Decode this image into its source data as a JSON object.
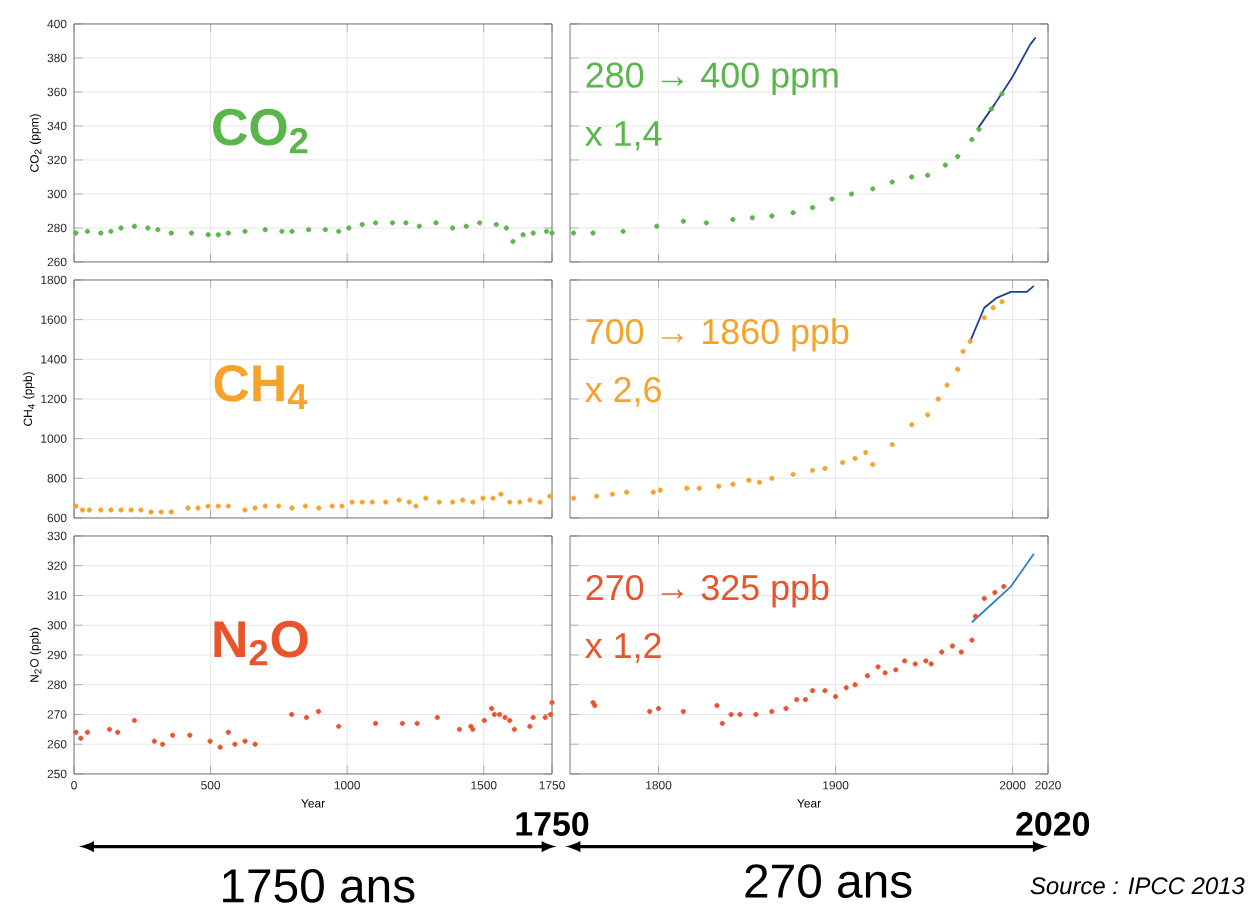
{
  "chart_data": [
    {
      "type": "scatter",
      "ylabel": "CO$_{2}$ (ppm)",
      "xlim": [
        0,
        1750
      ],
      "ylim": [
        260,
        400
      ],
      "xticks": [
        0,
        500,
        1000,
        1500,
        1750
      ],
      "yticks": [
        260,
        280,
        300,
        320,
        340,
        360,
        380,
        400
      ],
      "tick_labels": "y",
      "grid": true,
      "marker": "circle",
      "annotations": [
        "CO$_{2}$"
      ],
      "series": [
        {
          "color": "#5ab64a",
          "x": [
            7,
            49,
            98,
            135,
            172,
            221,
            270,
            307,
            356,
            430,
            491,
            528,
            565,
            626,
            700,
            761,
            798,
            859,
            920,
            969,
            1006,
            1055,
            1104,
            1166,
            1215,
            1264,
            1325,
            1386,
            1436,
            1485,
            1546,
            1583,
            1607,
            1644,
            1681,
            1730,
            1750
          ],
          "values": [
            277,
            278,
            277,
            278,
            280,
            281,
            280,
            279,
            277,
            277,
            276,
            276,
            277,
            278,
            279,
            278,
            278,
            279,
            279,
            278,
            280,
            282,
            283,
            283,
            283,
            281,
            283,
            280,
            281,
            283,
            282,
            280,
            272,
            276,
            277,
            278,
            277
          ]
        }
      ]
    },
    {
      "type": "scatter",
      "xlim": [
        1750,
        2020
      ],
      "ylim": [
        260,
        400
      ],
      "xticks": [
        1800,
        1900,
        2000,
        2020
      ],
      "yticks": [
        260,
        280,
        300,
        320,
        340,
        360,
        380,
        400
      ],
      "tick_labels": false,
      "grid": true,
      "marker": "circle",
      "annotations": [
        "280 → 400 ppm",
        "x 1,4"
      ],
      "series": [
        {
          "color": "#5ab64a",
          "x": [
            1752,
            1763,
            1780,
            1799,
            1814,
            1827,
            1842,
            1853,
            1864,
            1876,
            1887,
            1898,
            1909,
            1921,
            1932,
            1943,
            1952,
            1962,
            1969,
            1977,
            1981,
            1988,
            1994
          ],
          "values": [
            277,
            277,
            278,
            281,
            284,
            283,
            285,
            286,
            287,
            289,
            292,
            297,
            300,
            303,
            307,
            310,
            311,
            317,
            322,
            332,
            338,
            350,
            359
          ]
        },
        {
          "type": "line",
          "marker": "none",
          "color": "#1c3f94",
          "x": [
            1980,
            1990,
            2000,
            2010,
            2013
          ],
          "values": [
            338,
            353,
            369,
            388,
            392
          ]
        }
      ]
    },
    {
      "type": "scatter",
      "ylabel": "CH$_{4}$ (ppb)",
      "xlim": [
        0,
        1750
      ],
      "ylim": [
        600,
        1800
      ],
      "xticks": [
        0,
        500,
        1000,
        1500,
        1750
      ],
      "yticks": [
        600,
        800,
        1000,
        1200,
        1400,
        1600,
        1800
      ],
      "tick_labels": "y",
      "grid": true,
      "marker": "circle",
      "annotations": [
        "CH$_{4}$"
      ],
      "series": [
        {
          "color": "#f5a32a",
          "x": [
            7,
            31,
            56,
            98,
            135,
            172,
            209,
            245,
            282,
            319,
            356,
            417,
            454,
            491,
            528,
            565,
            626,
            663,
            700,
            749,
            798,
            847,
            896,
            945,
            981,
            1018,
            1055,
            1092,
            1141,
            1190,
            1227,
            1252,
            1288,
            1337,
            1386,
            1423,
            1460,
            1497,
            1534,
            1563,
            1595,
            1632,
            1669,
            1706,
            1742
          ],
          "values": [
            660,
            640,
            640,
            640,
            640,
            640,
            640,
            640,
            630,
            630,
            630,
            650,
            650,
            660,
            660,
            660,
            640,
            650,
            660,
            660,
            650,
            660,
            650,
            660,
            660,
            680,
            680,
            680,
            680,
            690,
            680,
            660,
            700,
            680,
            680,
            690,
            680,
            700,
            700,
            720,
            680,
            680,
            690,
            680,
            710
          ]
        }
      ]
    },
    {
      "type": "scatter",
      "xlim": [
        1750,
        2020
      ],
      "ylim": [
        600,
        1800
      ],
      "xticks": [
        1800,
        1900,
        2000,
        2020
      ],
      "yticks": [
        600,
        800,
        1000,
        1200,
        1400,
        1600,
        1800
      ],
      "tick_labels": false,
      "grid": true,
      "marker": "circle",
      "annotations": [
        "700 → 1860 ppb",
        "x 2,6"
      ],
      "series": [
        {
          "color": "#f5a32a",
          "x": [
            1752,
            1765,
            1774,
            1782,
            1797,
            1801,
            1816,
            1823,
            1834,
            1842,
            1851,
            1857,
            1864,
            1876,
            1887,
            1894,
            1904,
            1911,
            1917,
            1921,
            1932,
            1943,
            1952,
            1958,
            1963,
            1969,
            1972,
            1976,
            1984,
            1989,
            1994
          ],
          "values": [
            700,
            710,
            720,
            730,
            730,
            740,
            750,
            750,
            760,
            770,
            790,
            780,
            800,
            820,
            840,
            850,
            880,
            900,
            930,
            870,
            970,
            1070,
            1120,
            1200,
            1270,
            1350,
            1440,
            1490,
            1610,
            1660,
            1690
          ]
        },
        {
          "type": "line",
          "marker": "none",
          "color": "#1c3f94",
          "x": [
            1976,
            1984,
            1991,
            1999,
            2008,
            2012
          ],
          "values": [
            1490,
            1660,
            1710,
            1740,
            1740,
            1770
          ]
        }
      ]
    },
    {
      "type": "scatter",
      "ylabel": "N$_{2}$O (ppb)",
      "xlabel": "Year",
      "xlim": [
        0,
        1750
      ],
      "ylim": [
        250,
        330
      ],
      "xticks": [
        0,
        500,
        1000,
        1500,
        1750
      ],
      "yticks": [
        250,
        260,
        270,
        280,
        290,
        300,
        310,
        320,
        330
      ],
      "grid": true,
      "marker": "circle",
      "annotations": [
        "N$_{2}$O",
        "1750",
        "1750 ans"
      ],
      "series": [
        {
          "color": "#e9542c",
          "x": [
            7,
            25,
            49,
            130,
            160,
            221,
            294,
            324,
            361,
            424,
            498,
            535,
            565,
            589,
            626,
            663,
            797,
            851,
            895,
            969,
            1104,
            1202,
            1256,
            1330,
            1411,
            1453,
            1460,
            1502,
            1529,
            1539,
            1558,
            1578,
            1595,
            1612,
            1669,
            1681,
            1725,
            1745,
            1750
          ],
          "values": [
            264,
            262,
            264,
            265,
            264,
            268,
            261,
            260,
            263,
            263,
            261,
            259,
            264,
            260,
            261,
            260,
            270,
            269,
            271,
            266,
            267,
            267,
            267,
            269,
            265,
            266,
            265,
            268,
            272,
            270,
            270,
            269,
            268,
            265,
            266,
            269,
            269,
            270,
            274
          ]
        }
      ]
    },
    {
      "type": "scatter",
      "xlabel": "Year",
      "xlim": [
        1750,
        2020
      ],
      "ylim": [
        250,
        330
      ],
      "xticks": [
        1800,
        1900,
        2000,
        2020
      ],
      "yticks": [
        250,
        260,
        270,
        280,
        290,
        300,
        310,
        320,
        330
      ],
      "tick_labels": "x",
      "grid": true,
      "marker": "circle",
      "annotations": [
        "270 → 325 ppb",
        "x 1,2",
        "2020",
        "270 ans",
        "Source : IPCC 2013"
      ],
      "series": [
        {
          "color": "#e9542c",
          "x": [
            1763,
            1764,
            1795,
            1800,
            1814,
            1833,
            1836,
            1841,
            1846,
            1855,
            1864,
            1872,
            1878,
            1883,
            1887,
            1894,
            1900,
            1906,
            1911,
            1918,
            1924,
            1928,
            1934,
            1939,
            1945,
            1951,
            1954,
            1960,
            1966,
            1971,
            1977,
            1979,
            1984,
            1990,
            1995
          ],
          "values": [
            274,
            273,
            271,
            272,
            271,
            273,
            267,
            270,
            270,
            270,
            271,
            272,
            275,
            275,
            278,
            278,
            276,
            279,
            280,
            283,
            286,
            284,
            285,
            288,
            287,
            288,
            287,
            291,
            293,
            291,
            295,
            303,
            309,
            311,
            313
          ]
        },
        {
          "type": "line",
          "marker": "none",
          "color": "#2f7fc8",
          "x": [
            1977,
            1999,
            2012
          ],
          "values": [
            301,
            313,
            324
          ]
        }
      ]
    }
  ]
}
